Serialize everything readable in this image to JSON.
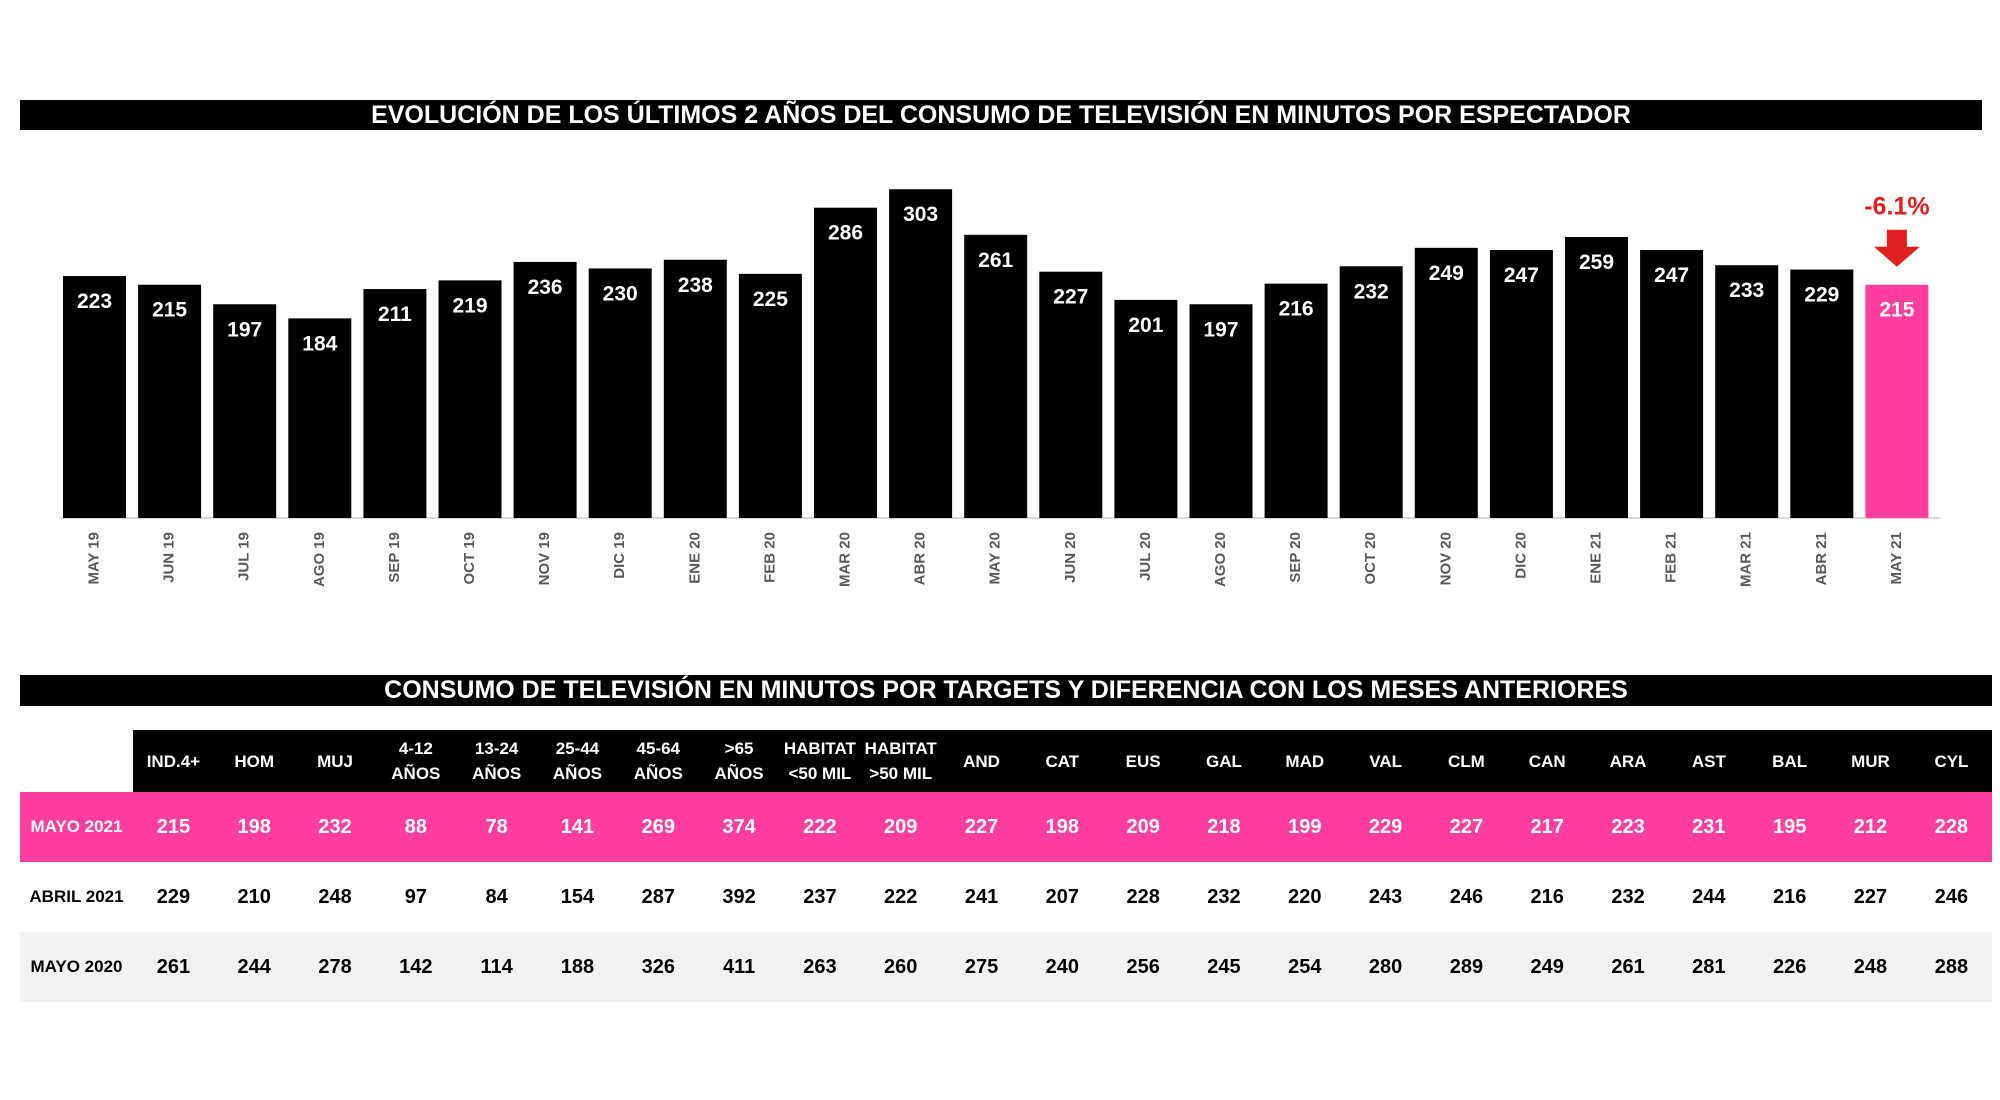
{
  "chart_title": "EVOLUCIÓN DE LOS ÚLTIMOS 2 AÑOS DEL CONSUMO DE TELEVISIÓN EN MINUTOS POR ESPECTADOR",
  "chart_data": {
    "type": "bar",
    "title": "EVOLUCIÓN DE LOS ÚLTIMOS 2 AÑOS DEL CONSUMO DE TELEVISIÓN EN MINUTOS POR ESPECTADOR",
    "categories": [
      "MAY 19",
      "JUN 19",
      "JUL 19",
      "AGO 19",
      "SEP 19",
      "OCT 19",
      "NOV 19",
      "DIC 19",
      "ENE 20",
      "FEB 20",
      "MAR 20",
      "ABR 20",
      "MAY 20",
      "JUN 20",
      "JUL 20",
      "AGO 20",
      "SEP 20",
      "OCT 20",
      "NOV 20",
      "DIC 20",
      "ENE 21",
      "FEB 21",
      "MAR 21",
      "ABR 21",
      "MAY 21"
    ],
    "values": [
      223,
      215,
      197,
      184,
      211,
      219,
      236,
      230,
      238,
      225,
      286,
      303,
      261,
      227,
      201,
      197,
      216,
      232,
      249,
      247,
      259,
      247,
      233,
      229,
      215
    ],
    "xlabel": "",
    "ylabel": "",
    "ylim": [
      0,
      320
    ],
    "highlight_index": 24,
    "bar_color": "#000000",
    "highlight_color": "#ff3e9e",
    "annotation": {
      "text": "-6.1%",
      "color": "#e02020",
      "arrow": "down"
    }
  },
  "table": {
    "title": "CONSUMO DE TELEVISIÓN EN MINUTOS POR TARGETS Y DIFERENCIA CON LOS MESES ANTERIORES",
    "headers": [
      [
        "IND.4+"
      ],
      [
        "HOM"
      ],
      [
        "MUJ"
      ],
      [
        "4-12",
        "AÑOS"
      ],
      [
        "13-24",
        "AÑOS"
      ],
      [
        "25-44",
        "AÑOS"
      ],
      [
        "45-64",
        "AÑOS"
      ],
      [
        ">65",
        "AÑOS"
      ],
      [
        "HABITAT",
        "<50 MIL"
      ],
      [
        "HABITAT",
        ">50 MIL"
      ],
      [
        "AND"
      ],
      [
        "CAT"
      ],
      [
        "EUS"
      ],
      [
        "GAL"
      ],
      [
        "MAD"
      ],
      [
        "VAL"
      ],
      [
        "CLM"
      ],
      [
        "CAN"
      ],
      [
        "ARA"
      ],
      [
        "AST"
      ],
      [
        "BAL"
      ],
      [
        "MUR"
      ],
      [
        "CYL"
      ]
    ],
    "rows": [
      {
        "label": "MAYO 2021",
        "style": "pink",
        "values": [
          215,
          198,
          232,
          88,
          78,
          141,
          269,
          374,
          222,
          209,
          227,
          198,
          209,
          218,
          199,
          229,
          227,
          217,
          223,
          231,
          195,
          212,
          228
        ]
      },
      {
        "label": "ABRIL 2021",
        "style": "white",
        "values": [
          229,
          210,
          248,
          97,
          84,
          154,
          287,
          392,
          237,
          222,
          241,
          207,
          228,
          232,
          220,
          243,
          246,
          216,
          232,
          244,
          216,
          227,
          246
        ]
      },
      {
        "label": "MAYO 2020",
        "style": "grey",
        "values": [
          261,
          244,
          278,
          142,
          114,
          188,
          326,
          411,
          263,
          260,
          275,
          240,
          256,
          245,
          254,
          280,
          289,
          249,
          261,
          281,
          226,
          248,
          288
        ]
      }
    ]
  }
}
